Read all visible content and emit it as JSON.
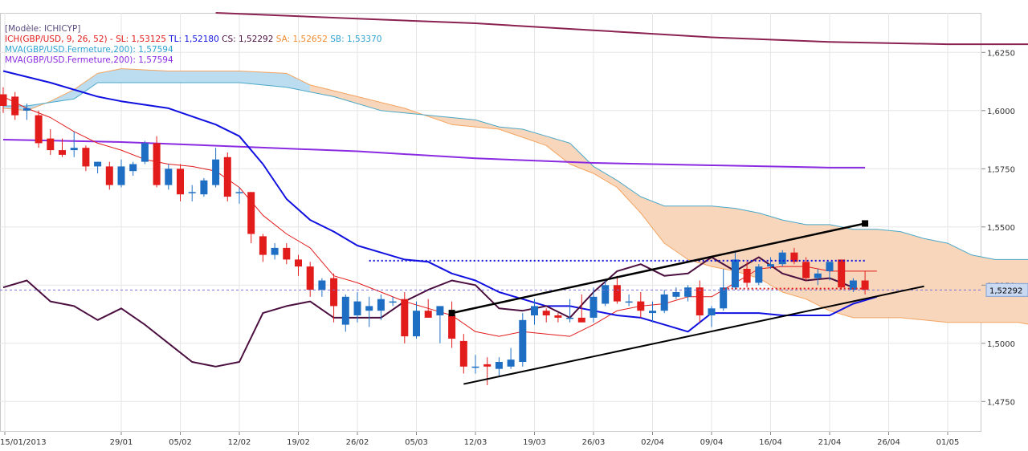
{
  "chart_data": {
    "type": "candlestick",
    "model_label": "[Modèle: ICHICYP]",
    "legend": {
      "ichimoku": {
        "label": "ICH(GBP/USD, 9, 26, 52) -",
        "sl": "SL: 1,53125",
        "tl": "TL: 1,52180",
        "cs": "CS: 1,52292",
        "sa": "SA: 1,52652",
        "sb": "SB: 1,53370"
      },
      "mva1": "MVA(GBP/USD.Fermeture,200): 1,57594",
      "mva2": "MVA(GBP/USD.Fermeture,200): 1,57594"
    },
    "colors": {
      "bull": "#1e6fc4",
      "bear": "#e21b1b",
      "tenkan": "#e21b1b",
      "kijun": "#1010e0",
      "chikou": "#4b0f3f",
      "spanA": "#f4a460",
      "spanB": "#4aa8c8",
      "cloud_bull": "#bcdcf0",
      "cloud_bear": "#f7d6bb",
      "mva_purple": "#8a2be2",
      "mva_long": "#8b2252",
      "trendline": "#000000"
    },
    "price_axis": {
      "min": 1.462,
      "max": 1.642,
      "ticks": [
        "1,6250",
        "1,6000",
        "1,5750",
        "1,5500",
        "1,5250",
        "1,5000",
        "1,4750"
      ],
      "tick_values": [
        1.625,
        1.6,
        1.575,
        1.55,
        1.525,
        1.5,
        1.475
      ],
      "current_label": "1,52292",
      "current_value": 1.52292
    },
    "x_axis": {
      "labels": [
        "15/01/2013",
        "29/01",
        "05/02",
        "12/02",
        "19/02",
        "26/02",
        "05/03",
        "12/03",
        "19/03",
        "26/03",
        "02/04",
        "09/04",
        "16/04",
        "21/04",
        "26/04",
        "01/05"
      ],
      "label_days": [
        0,
        10,
        15,
        20,
        25,
        30,
        35,
        40,
        45,
        50,
        55,
        60,
        65,
        70,
        75,
        80
      ],
      "day_range": [
        0,
        88
      ]
    },
    "candles": [
      {
        "d": 0,
        "o": 1.607,
        "h": 1.61,
        "l": 1.599,
        "c": 1.602
      },
      {
        "d": 1,
        "o": 1.606,
        "h": 1.608,
        "l": 1.596,
        "c": 1.598
      },
      {
        "d": 2,
        "o": 1.6,
        "h": 1.603,
        "l": 1.596,
        "c": 1.601
      },
      {
        "d": 3,
        "o": 1.598,
        "h": 1.6,
        "l": 1.584,
        "c": 1.586
      },
      {
        "d": 4,
        "o": 1.588,
        "h": 1.592,
        "l": 1.581,
        "c": 1.583
      },
      {
        "d": 5,
        "o": 1.583,
        "h": 1.588,
        "l": 1.58,
        "c": 1.581
      },
      {
        "d": 6,
        "o": 1.583,
        "h": 1.591,
        "l": 1.58,
        "c": 1.584
      },
      {
        "d": 7,
        "o": 1.584,
        "h": 1.585,
        "l": 1.574,
        "c": 1.576
      },
      {
        "d": 8,
        "o": 1.576,
        "h": 1.578,
        "l": 1.573,
        "c": 1.578
      },
      {
        "d": 9,
        "o": 1.576,
        "h": 1.578,
        "l": 1.566,
        "c": 1.568
      },
      {
        "d": 10,
        "o": 1.568,
        "h": 1.579,
        "l": 1.567,
        "c": 1.576
      },
      {
        "d": 11,
        "o": 1.574,
        "h": 1.578,
        "l": 1.572,
        "c": 1.577
      },
      {
        "d": 12,
        "o": 1.578,
        "h": 1.587,
        "l": 1.577,
        "c": 1.586
      },
      {
        "d": 13,
        "o": 1.586,
        "h": 1.589,
        "l": 1.567,
        "c": 1.568
      },
      {
        "d": 14,
        "o": 1.568,
        "h": 1.577,
        "l": 1.566,
        "c": 1.575
      },
      {
        "d": 15,
        "o": 1.575,
        "h": 1.577,
        "l": 1.561,
        "c": 1.564
      },
      {
        "d": 16,
        "o": 1.565,
        "h": 1.568,
        "l": 1.561,
        "c": 1.565
      },
      {
        "d": 17,
        "o": 1.564,
        "h": 1.571,
        "l": 1.563,
        "c": 1.57
      },
      {
        "d": 18,
        "o": 1.568,
        "h": 1.584,
        "l": 1.567,
        "c": 1.579
      },
      {
        "d": 19,
        "o": 1.58,
        "h": 1.582,
        "l": 1.561,
        "c": 1.563
      },
      {
        "d": 20,
        "o": 1.565,
        "h": 1.567,
        "l": 1.56,
        "c": 1.565
      },
      {
        "d": 21,
        "o": 1.565,
        "h": 1.565,
        "l": 1.543,
        "c": 1.547
      },
      {
        "d": 22,
        "o": 1.546,
        "h": 1.547,
        "l": 1.535,
        "c": 1.538
      },
      {
        "d": 23,
        "o": 1.538,
        "h": 1.543,
        "l": 1.536,
        "c": 1.541
      },
      {
        "d": 24,
        "o": 1.541,
        "h": 1.543,
        "l": 1.534,
        "c": 1.536
      },
      {
        "d": 25,
        "o": 1.536,
        "h": 1.538,
        "l": 1.529,
        "c": 1.533
      },
      {
        "d": 26,
        "o": 1.533,
        "h": 1.535,
        "l": 1.52,
        "c": 1.523
      },
      {
        "d": 27,
        "o": 1.523,
        "h": 1.528,
        "l": 1.52,
        "c": 1.527
      },
      {
        "d": 28,
        "o": 1.528,
        "h": 1.53,
        "l": 1.509,
        "c": 1.516
      },
      {
        "d": 29,
        "o": 1.508,
        "h": 1.521,
        "l": 1.505,
        "c": 1.52
      },
      {
        "d": 30,
        "o": 1.512,
        "h": 1.522,
        "l": 1.509,
        "c": 1.518
      },
      {
        "d": 31,
        "o": 1.514,
        "h": 1.52,
        "l": 1.507,
        "c": 1.516
      },
      {
        "d": 32,
        "o": 1.514,
        "h": 1.521,
        "l": 1.51,
        "c": 1.519
      },
      {
        "d": 33,
        "o": 1.518,
        "h": 1.52,
        "l": 1.516,
        "c": 1.518
      },
      {
        "d": 34,
        "o": 1.519,
        "h": 1.522,
        "l": 1.5,
        "c": 1.503
      },
      {
        "d": 35,
        "o": 1.503,
        "h": 1.518,
        "l": 1.502,
        "c": 1.514
      },
      {
        "d": 36,
        "o": 1.514,
        "h": 1.519,
        "l": 1.511,
        "c": 1.511
      },
      {
        "d": 37,
        "o": 1.512,
        "h": 1.516,
        "l": 1.5,
        "c": 1.516
      },
      {
        "d": 38,
        "o": 1.512,
        "h": 1.518,
        "l": 1.498,
        "c": 1.502
      },
      {
        "d": 39,
        "o": 1.501,
        "h": 1.504,
        "l": 1.487,
        "c": 1.49
      },
      {
        "d": 40,
        "o": 1.49,
        "h": 1.495,
        "l": 1.487,
        "c": 1.49
      },
      {
        "d": 41,
        "o": 1.491,
        "h": 1.494,
        "l": 1.482,
        "c": 1.49
      },
      {
        "d": 42,
        "o": 1.489,
        "h": 1.494,
        "l": 1.486,
        "c": 1.492
      },
      {
        "d": 43,
        "o": 1.49,
        "h": 1.498,
        "l": 1.489,
        "c": 1.493
      },
      {
        "d": 44,
        "o": 1.492,
        "h": 1.513,
        "l": 1.49,
        "c": 1.51
      },
      {
        "d": 45,
        "o": 1.512,
        "h": 1.519,
        "l": 1.508,
        "c": 1.516
      },
      {
        "d": 46,
        "o": 1.514,
        "h": 1.515,
        "l": 1.509,
        "c": 1.512
      },
      {
        "d": 47,
        "o": 1.512,
        "h": 1.513,
        "l": 1.509,
        "c": 1.511
      },
      {
        "d": 48,
        "o": 1.511,
        "h": 1.519,
        "l": 1.509,
        "c": 1.511
      },
      {
        "d": 49,
        "o": 1.511,
        "h": 1.521,
        "l": 1.509,
        "c": 1.509
      },
      {
        "d": 50,
        "o": 1.511,
        "h": 1.524,
        "l": 1.509,
        "c": 1.52
      },
      {
        "d": 51,
        "o": 1.517,
        "h": 1.527,
        "l": 1.516,
        "c": 1.525
      },
      {
        "d": 52,
        "o": 1.525,
        "h": 1.529,
        "l": 1.517,
        "c": 1.518
      },
      {
        "d": 53,
        "o": 1.518,
        "h": 1.521,
        "l": 1.516,
        "c": 1.518
      },
      {
        "d": 54,
        "o": 1.518,
        "h": 1.522,
        "l": 1.511,
        "c": 1.514
      },
      {
        "d": 55,
        "o": 1.513,
        "h": 1.518,
        "l": 1.509,
        "c": 1.514
      },
      {
        "d": 56,
        "o": 1.514,
        "h": 1.523,
        "l": 1.513,
        "c": 1.521
      },
      {
        "d": 57,
        "o": 1.52,
        "h": 1.524,
        "l": 1.519,
        "c": 1.522
      },
      {
        "d": 58,
        "o": 1.52,
        "h": 1.525,
        "l": 1.518,
        "c": 1.524
      },
      {
        "d": 59,
        "o": 1.524,
        "h": 1.527,
        "l": 1.509,
        "c": 1.512
      },
      {
        "d": 60,
        "o": 1.512,
        "h": 1.516,
        "l": 1.507,
        "c": 1.515
      },
      {
        "d": 61,
        "o": 1.515,
        "h": 1.532,
        "l": 1.514,
        "c": 1.524
      },
      {
        "d": 62,
        "o": 1.524,
        "h": 1.539,
        "l": 1.523,
        "c": 1.536
      },
      {
        "d": 63,
        "o": 1.532,
        "h": 1.535,
        "l": 1.524,
        "c": 1.526
      },
      {
        "d": 64,
        "o": 1.526,
        "h": 1.534,
        "l": 1.525,
        "c": 1.533
      },
      {
        "d": 65,
        "o": 1.533,
        "h": 1.537,
        "l": 1.532,
        "c": 1.534
      },
      {
        "d": 66,
        "o": 1.534,
        "h": 1.54,
        "l": 1.533,
        "c": 1.539
      },
      {
        "d": 67,
        "o": 1.539,
        "h": 1.541,
        "l": 1.534,
        "c": 1.535
      },
      {
        "d": 68,
        "o": 1.535,
        "h": 1.537,
        "l": 1.527,
        "c": 1.528
      },
      {
        "d": 69,
        "o": 1.528,
        "h": 1.532,
        "l": 1.525,
        "c": 1.53
      },
      {
        "d": 70,
        "o": 1.531,
        "h": 1.535,
        "l": 1.527,
        "c": 1.535
      },
      {
        "d": 71,
        "o": 1.536,
        "h": 1.536,
        "l": 1.523,
        "c": 1.524
      },
      {
        "d": 72,
        "o": 1.523,
        "h": 1.528,
        "l": 1.522,
        "c": 1.527
      },
      {
        "d": 73,
        "o": 1.527,
        "h": 1.531,
        "l": 1.521,
        "c": 1.523
      }
    ],
    "tenkan_sen": [
      [
        0,
        1.606
      ],
      [
        2,
        1.601
      ],
      [
        4,
        1.597
      ],
      [
        6,
        1.591
      ],
      [
        8,
        1.586
      ],
      [
        10,
        1.583
      ],
      [
        12,
        1.579
      ],
      [
        14,
        1.577
      ],
      [
        16,
        1.576
      ],
      [
        18,
        1.574
      ],
      [
        20,
        1.567
      ],
      [
        22,
        1.555
      ],
      [
        24,
        1.547
      ],
      [
        26,
        1.541
      ],
      [
        28,
        1.529
      ],
      [
        30,
        1.526
      ],
      [
        32,
        1.522
      ],
      [
        34,
        1.518
      ],
      [
        36,
        1.515
      ],
      [
        38,
        1.512
      ],
      [
        40,
        1.505
      ],
      [
        42,
        1.503
      ],
      [
        44,
        1.505
      ],
      [
        46,
        1.504
      ],
      [
        48,
        1.503
      ],
      [
        50,
        1.508
      ],
      [
        52,
        1.514
      ],
      [
        54,
        1.516
      ],
      [
        56,
        1.517
      ],
      [
        58,
        1.52
      ],
      [
        60,
        1.52
      ],
      [
        62,
        1.526
      ],
      [
        64,
        1.532
      ],
      [
        66,
        1.533
      ],
      [
        68,
        1.533
      ],
      [
        70,
        1.531
      ],
      [
        72,
        1.531
      ],
      [
        74,
        1.531
      ]
    ],
    "kijun_sen": [
      [
        0,
        1.617
      ],
      [
        4,
        1.612
      ],
      [
        8,
        1.606
      ],
      [
        10,
        1.604
      ],
      [
        14,
        1.601
      ],
      [
        18,
        1.594
      ],
      [
        20,
        1.589
      ],
      [
        22,
        1.577
      ],
      [
        24,
        1.562
      ],
      [
        26,
        1.553
      ],
      [
        28,
        1.548
      ],
      [
        30,
        1.542
      ],
      [
        32,
        1.539
      ],
      [
        34,
        1.536
      ],
      [
        36,
        1.535
      ],
      [
        38,
        1.53
      ],
      [
        40,
        1.527
      ],
      [
        42,
        1.522
      ],
      [
        44,
        1.519
      ],
      [
        46,
        1.516
      ],
      [
        48,
        1.516
      ],
      [
        50,
        1.514
      ],
      [
        52,
        1.512
      ],
      [
        54,
        1.511
      ],
      [
        56,
        1.508
      ],
      [
        58,
        1.505
      ],
      [
        60,
        1.513
      ],
      [
        62,
        1.513
      ],
      [
        64,
        1.513
      ],
      [
        66,
        1.512
      ],
      [
        68,
        1.512
      ],
      [
        70,
        1.512
      ],
      [
        72,
        1.517
      ],
      [
        74,
        1.52
      ]
    ],
    "chikou_span": [
      [
        0,
        1.524
      ],
      [
        2,
        1.527
      ],
      [
        4,
        1.518
      ],
      [
        6,
        1.516
      ],
      [
        8,
        1.51
      ],
      [
        10,
        1.515
      ],
      [
        12,
        1.508
      ],
      [
        14,
        1.5
      ],
      [
        16,
        1.492
      ],
      [
        18,
        1.49
      ],
      [
        20,
        1.492
      ],
      [
        22,
        1.513
      ],
      [
        24,
        1.516
      ],
      [
        26,
        1.518
      ],
      [
        28,
        1.511
      ],
      [
        30,
        1.511
      ],
      [
        32,
        1.511
      ],
      [
        34,
        1.518
      ],
      [
        36,
        1.523
      ],
      [
        38,
        1.527
      ],
      [
        40,
        1.525
      ],
      [
        42,
        1.515
      ],
      [
        44,
        1.514
      ],
      [
        46,
        1.516
      ],
      [
        48,
        1.511
      ],
      [
        50,
        1.522
      ],
      [
        52,
        1.531
      ],
      [
        54,
        1.534
      ],
      [
        56,
        1.529
      ],
      [
        58,
        1.53
      ],
      [
        60,
        1.537
      ],
      [
        62,
        1.531
      ],
      [
        64,
        1.537
      ],
      [
        66,
        1.53
      ],
      [
        68,
        1.527
      ],
      [
        70,
        1.528
      ],
      [
        72,
        1.524
      ]
    ],
    "senkou_a": [
      [
        0,
        1.601
      ],
      [
        2,
        1.6
      ],
      [
        4,
        1.604
      ],
      [
        6,
        1.609
      ],
      [
        8,
        1.616
      ],
      [
        10,
        1.618
      ],
      [
        14,
        1.617
      ],
      [
        20,
        1.617
      ],
      [
        24,
        1.616
      ],
      [
        26,
        1.611
      ],
      [
        30,
        1.606
      ],
      [
        34,
        1.601
      ],
      [
        38,
        1.594
      ],
      [
        42,
        1.592
      ],
      [
        46,
        1.585
      ],
      [
        48,
        1.577
      ],
      [
        50,
        1.573
      ],
      [
        52,
        1.567
      ],
      [
        54,
        1.556
      ],
      [
        56,
        1.543
      ],
      [
        58,
        1.536
      ],
      [
        60,
        1.533
      ],
      [
        62,
        1.531
      ],
      [
        64,
        1.528
      ],
      [
        66,
        1.522
      ],
      [
        68,
        1.519
      ],
      [
        70,
        1.514
      ],
      [
        72,
        1.511
      ],
      [
        74,
        1.511
      ],
      [
        76,
        1.511
      ],
      [
        78,
        1.51
      ],
      [
        80,
        1.509
      ],
      [
        82,
        1.509
      ],
      [
        84,
        1.509
      ],
      [
        86,
        1.509
      ],
      [
        88,
        1.507
      ]
    ],
    "senkou_b": [
      [
        0,
        1.602
      ],
      [
        2,
        1.602
      ],
      [
        6,
        1.605
      ],
      [
        8,
        1.612
      ],
      [
        10,
        1.612
      ],
      [
        14,
        1.612
      ],
      [
        20,
        1.612
      ],
      [
        24,
        1.61
      ],
      [
        28,
        1.606
      ],
      [
        32,
        1.6
      ],
      [
        36,
        1.598
      ],
      [
        40,
        1.596
      ],
      [
        42,
        1.593
      ],
      [
        44,
        1.592
      ],
      [
        46,
        1.589
      ],
      [
        48,
        1.586
      ],
      [
        50,
        1.576
      ],
      [
        52,
        1.57
      ],
      [
        54,
        1.563
      ],
      [
        56,
        1.559
      ],
      [
        58,
        1.559
      ],
      [
        60,
        1.559
      ],
      [
        62,
        1.558
      ],
      [
        64,
        1.556
      ],
      [
        66,
        1.553
      ],
      [
        68,
        1.551
      ],
      [
        70,
        1.551
      ],
      [
        72,
        1.549
      ],
      [
        74,
        1.549
      ],
      [
        76,
        1.548
      ],
      [
        78,
        1.545
      ],
      [
        80,
        1.543
      ],
      [
        82,
        1.538
      ],
      [
        84,
        1.536
      ],
      [
        86,
        1.536
      ],
      [
        88,
        1.536
      ]
    ],
    "mva_purple": [
      [
        0,
        1.5875
      ],
      [
        10,
        1.5865
      ],
      [
        20,
        1.5845
      ],
      [
        30,
        1.5825
      ],
      [
        40,
        1.5795
      ],
      [
        50,
        1.5775
      ],
      [
        60,
        1.5765
      ],
      [
        70,
        1.5755
      ],
      [
        73,
        1.5755
      ]
    ],
    "mva_long": [
      [
        18,
        1.642
      ],
      [
        30,
        1.6395
      ],
      [
        40,
        1.6375
      ],
      [
        50,
        1.6345
      ],
      [
        60,
        1.6315
      ],
      [
        70,
        1.6295
      ],
      [
        80,
        1.6285
      ],
      [
        87,
        1.6285
      ]
    ],
    "hline_blue": {
      "x_range": [
        31,
        73
      ],
      "y": 1.5355
    },
    "hline_red": {
      "x_range": [
        61,
        73
      ],
      "y": 1.5235
    },
    "trendline_upper": {
      "from": [
        38,
        1.513
      ],
      "to": [
        73,
        1.5515
      ]
    },
    "trendline_lower": {
      "from": [
        39,
        1.4825
      ],
      "to": [
        78,
        1.5245
      ]
    },
    "cloud_bull_until_day": 26
  }
}
